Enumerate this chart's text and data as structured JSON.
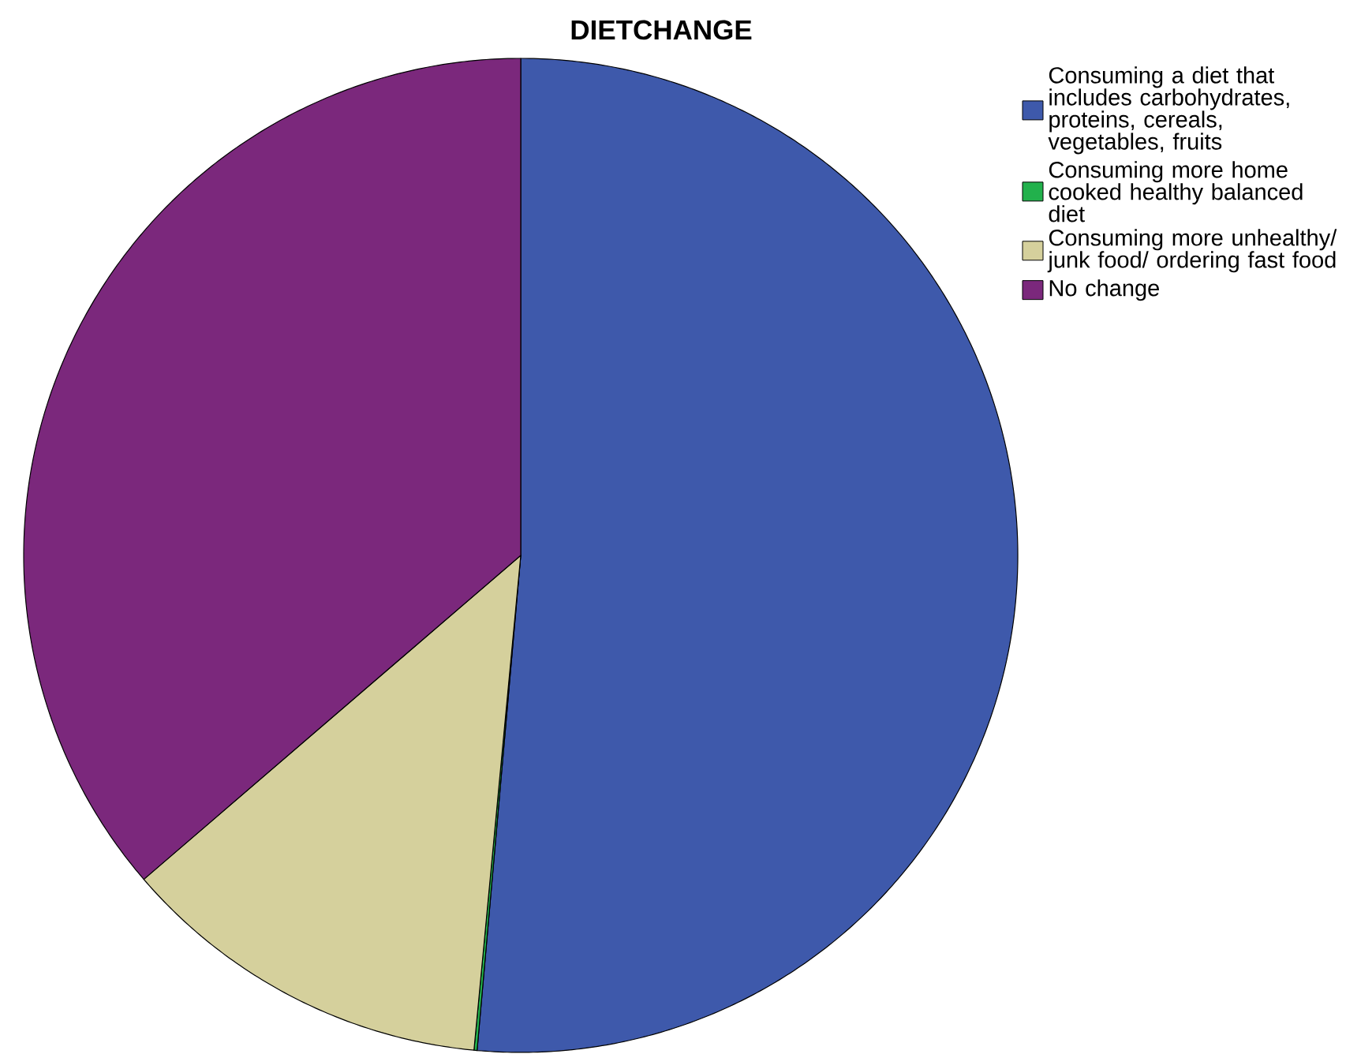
{
  "chart_data": {
    "type": "pie",
    "title": "DIETCHANGE",
    "categories": [
      "Consuming a diet that includes carbohydrates, proteins, cereals, vegetables, fruits",
      "Consuming more home cooked healthy balanced diet",
      "Consuming more unhealthy/ junk food/ ordering fast food",
      "No change"
    ],
    "values": [
      51.4,
      0.1,
      12.2,
      36.3
    ],
    "colors": [
      "#3e59ab",
      "#22b14c",
      "#d5d09c",
      "#7b287c"
    ],
    "legend": "top right"
  }
}
